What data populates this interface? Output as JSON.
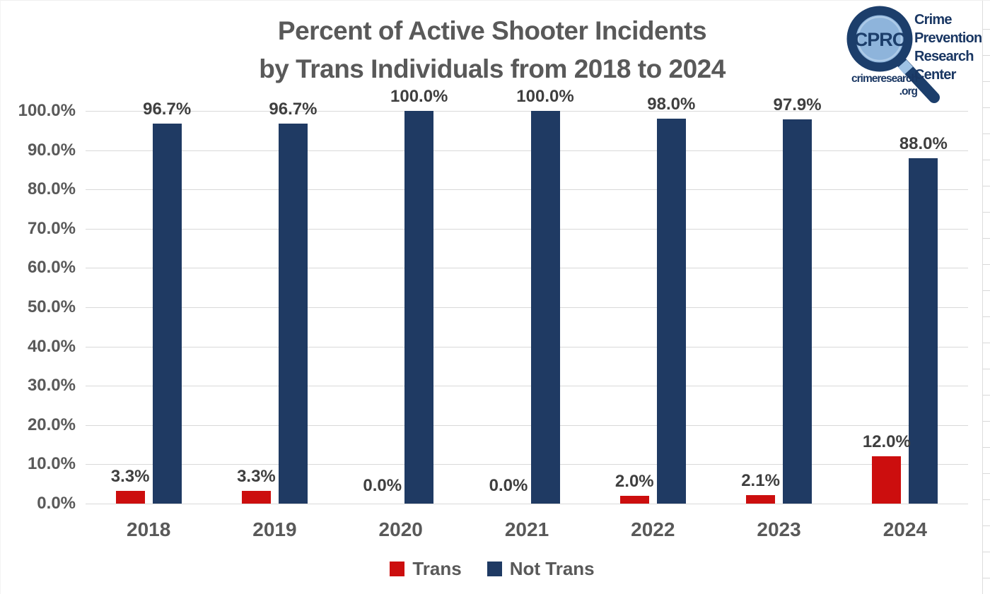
{
  "title": {
    "line1": "Percent of Active Shooter Incidents",
    "line2": "by Trans Individuals from 2018 to 2024"
  },
  "logo": {
    "icon": "magnifier-icon",
    "abbr": "CPRC",
    "org_lines": [
      "Crime",
      "Prevention",
      "Research",
      "Center"
    ],
    "url_line1": "crimeresearch",
    "url_line2": ".org"
  },
  "chart_data": {
    "type": "bar",
    "title": "Percent of Active Shooter Incidents by Trans Individuals from 2018 to 2024",
    "categories": [
      "2018",
      "2019",
      "2020",
      "2021",
      "2022",
      "2023",
      "2024"
    ],
    "series": [
      {
        "name": "Trans",
        "color": "#cc0e0e",
        "values": [
          3.3,
          3.3,
          0.0,
          0.0,
          2.0,
          2.1,
          12.0
        ],
        "labels": [
          "3.3%",
          "3.3%",
          "0.0%",
          "0.0%",
          "2.0%",
          "2.1%",
          "12.0%"
        ]
      },
      {
        "name": "Not Trans",
        "color": "#1f3a63",
        "values": [
          96.7,
          96.7,
          100.0,
          100.0,
          98.0,
          97.9,
          88.0
        ],
        "labels": [
          "96.7%",
          "96.7%",
          "100.0%",
          "100.0%",
          "98.0%",
          "97.9%",
          "88.0%"
        ]
      }
    ],
    "y_ticks": [
      "100.0%",
      "90.0%",
      "80.0%",
      "70.0%",
      "60.0%",
      "50.0%",
      "40.0%",
      "30.0%",
      "20.0%",
      "10.0%",
      "0.0%"
    ],
    "ylim": [
      0,
      100
    ],
    "ytick_step": 10,
    "grid": true,
    "legend_position": "bottom"
  },
  "legend": {
    "items": [
      {
        "label": "Trans",
        "color": "#cc0e0e"
      },
      {
        "label": "Not Trans",
        "color": "#1f3a63"
      }
    ]
  },
  "colors": {
    "trans_red": "#cc0e0e",
    "not_trans_navy": "#1f3a63",
    "title_gray": "#595959",
    "data_label_gray": "#3f3f3f",
    "gridline_gray": "#d9d9d9",
    "logo_navy": "#1c3e6b",
    "logo_lens_blue": "#8eb4db"
  }
}
